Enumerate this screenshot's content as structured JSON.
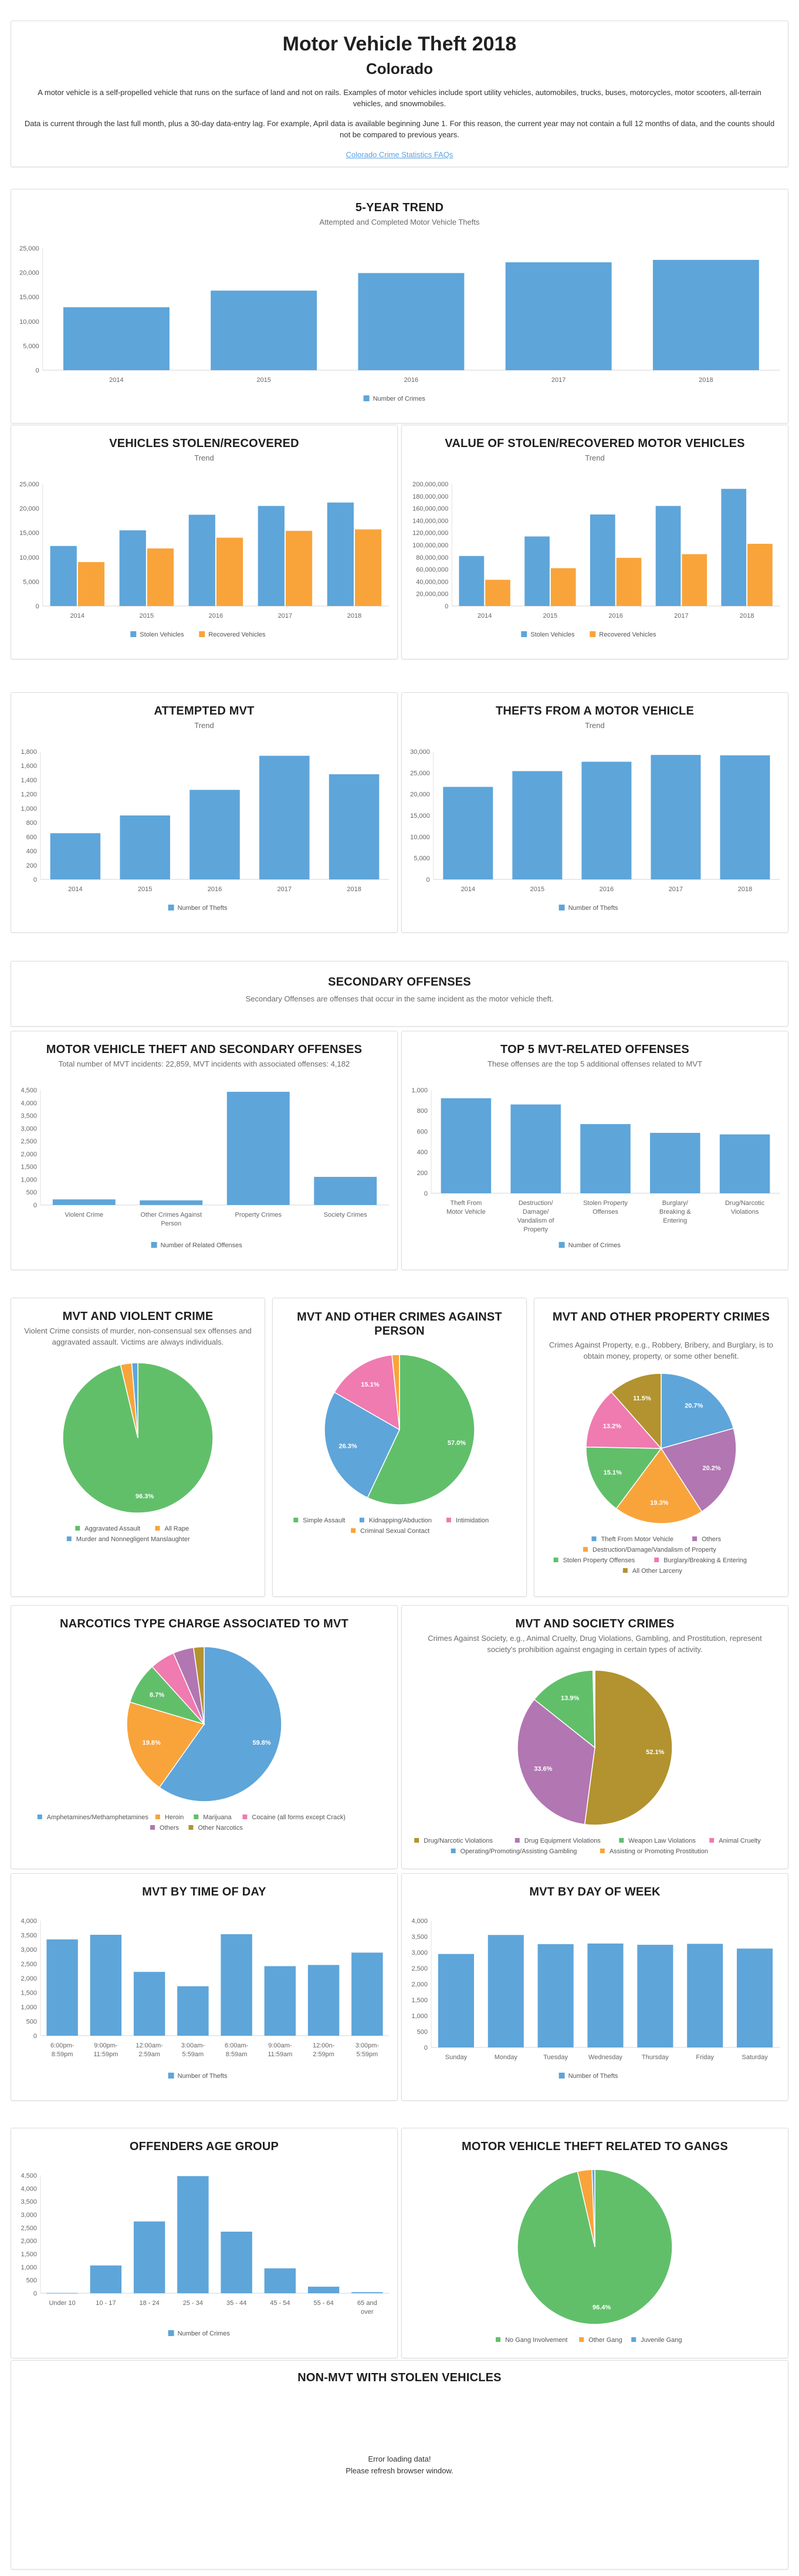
{
  "header": {
    "title": "Motor Vehicle Theft 2018",
    "state": "Colorado",
    "paragraph1": "A motor vehicle is a self-propelled vehicle that runs on the surface of land and not on rails. Examples of motor vehicles include sport utility vehicles, automobiles, trucks, buses, motorcycles, motor scooters, all-terrain vehicles, and snowmobiles.",
    "paragraph2": "Data is current through the last full month, plus a 30-day data-entry lag. For example, April data is available beginning June 1. For this reason, the current year may not contain a full 12 months of data, and the counts should not be compared to previous years.",
    "faq_link": "Colorado Crime Statistics FAQs"
  },
  "colors": {
    "blue": "#5ea5da",
    "orange": "#f9a43b",
    "green": "#61bf6a",
    "pink": "#ef7bb0",
    "purple": "#b276b2",
    "olive": "#b2932f",
    "link": "#5aa3e0"
  },
  "secondary": {
    "title": "SECONDARY OFFENSES",
    "subtitle": "Secondary Offenses are offenses that occur in the same incident as the motor vehicle theft."
  },
  "non_mvt": {
    "title": "NON-MVT WITH STOLEN VEHICLES",
    "error_line1": "Error loading data!",
    "error_line2": "Please refresh browser window."
  },
  "chart_data": [
    {
      "id": "five_year",
      "type": "bar",
      "title": "5-YEAR TREND",
      "subtitle": "Attempted and Completed Motor Vehicle Thefts",
      "categories": [
        "2014",
        "2015",
        "2016",
        "2017",
        "2018"
      ],
      "series": [
        {
          "name": "Number of Crimes",
          "color": "#5ea5da",
          "values": [
            12900,
            16300,
            19900,
            22100,
            22600
          ]
        }
      ],
      "yticks": [
        "0",
        "5,000",
        "10,000",
        "15,000",
        "20,000",
        "25,000"
      ],
      "ylim": [
        0,
        25000
      ],
      "legend": "bottom"
    },
    {
      "id": "stolen_recovered",
      "type": "bar",
      "title": "VEHICLES STOLEN/RECOVERED",
      "subtitle": "Trend",
      "categories": [
        "2014",
        "2015",
        "2016",
        "2017",
        "2018"
      ],
      "series": [
        {
          "name": "Stolen Vehicles",
          "color": "#5ea5da",
          "values": [
            12300,
            15500,
            18700,
            20500,
            21200
          ]
        },
        {
          "name": "Recovered Vehicles",
          "color": "#f9a43b",
          "values": [
            9000,
            11800,
            14000,
            15400,
            15700
          ]
        }
      ],
      "yticks": [
        "0",
        "5,000",
        "10,000",
        "15,000",
        "20,000",
        "25,000"
      ],
      "ylim": [
        0,
        25000
      ],
      "legend": "bottom"
    },
    {
      "id": "value",
      "type": "bar",
      "title": "VALUE OF STOLEN/RECOVERED MOTOR VEHICLES",
      "subtitle": "Trend",
      "categories": [
        "2014",
        "2015",
        "2016",
        "2017",
        "2018"
      ],
      "series": [
        {
          "name": "Stolen Vehicles",
          "color": "#5ea5da",
          "values": [
            82000000,
            114000000,
            150000000,
            164000000,
            192000000
          ]
        },
        {
          "name": "Recovered Vehicles",
          "color": "#f9a43b",
          "values": [
            43000000,
            62000000,
            79000000,
            85000000,
            102000000
          ]
        }
      ],
      "yticks": [
        "0",
        "20,000,000",
        "40,000,000",
        "60,000,000",
        "80,000,000",
        "100,000,000",
        "120,000,000",
        "140,000,000",
        "160,000,000",
        "180,000,000",
        "200,000,000"
      ],
      "ylim": [
        0,
        200000000
      ],
      "legend": "bottom"
    },
    {
      "id": "attempted",
      "type": "bar",
      "title": "ATTEMPTED MVT",
      "subtitle": "Trend",
      "categories": [
        "2014",
        "2015",
        "2016",
        "2017",
        "2018"
      ],
      "series": [
        {
          "name": "Number of Thefts",
          "color": "#5ea5da",
          "values": [
            650,
            900,
            1260,
            1740,
            1480
          ]
        }
      ],
      "yticks": [
        "0",
        "200",
        "400",
        "600",
        "800",
        "1,000",
        "1,200",
        "1,400",
        "1,600",
        "1,800"
      ],
      "ylim": [
        0,
        1800
      ],
      "legend": "bottom"
    },
    {
      "id": "thefts_from",
      "type": "bar",
      "title": "THEFTS FROM A MOTOR VEHICLE",
      "subtitle": "Trend",
      "categories": [
        "2014",
        "2015",
        "2016",
        "2017",
        "2018"
      ],
      "series": [
        {
          "name": "Number of Thefts",
          "color": "#5ea5da",
          "values": [
            21700,
            25400,
            27600,
            29200,
            29100
          ]
        }
      ],
      "yticks": [
        "0",
        "5,000",
        "10,000",
        "15,000",
        "20,000",
        "25,000",
        "30,000"
      ],
      "ylim": [
        0,
        30000
      ],
      "legend": "bottom"
    },
    {
      "id": "secondary_offenses",
      "type": "bar",
      "title": "MOTOR VEHICLE THEFT AND SECONDARY OFFENSES",
      "subtitle": "Total number of MVT incidents: 22,859, MVT incidents with associated offenses: 4,182",
      "categories": [
        "Violent Crime",
        "Other Crimes Against|Person",
        "Property Crimes",
        "Society Crimes"
      ],
      "series": [
        {
          "name": "Number of Related Offenses",
          "color": "#5ea5da",
          "values": [
            220,
            180,
            4430,
            1100
          ]
        }
      ],
      "yticks": [
        "0",
        "500",
        "1,000",
        "1,500",
        "2,000",
        "2,500",
        "3,000",
        "3,500",
        "4,000",
        "4,500"
      ],
      "ylim": [
        0,
        4500
      ],
      "legend": "bottom"
    },
    {
      "id": "top5",
      "type": "bar",
      "title": "TOP 5 MVT-RELATED OFFENSES",
      "subtitle": "These offenses are the top 5 additional offenses related to MVT",
      "categories": [
        "Theft From|Motor Vehicle",
        "Destruction/|Damage/|Vandalism of|Property",
        "Stolen Property|Offenses",
        "Burglary/|Breaking &|Entering",
        "Drug/Narcotic|Violations"
      ],
      "series": [
        {
          "name": "Number of Crimes",
          "color": "#5ea5da",
          "values": [
            920,
            860,
            670,
            585,
            570
          ]
        }
      ],
      "yticks": [
        "0",
        "200",
        "400",
        "600",
        "800",
        "1,000"
      ],
      "ylim": [
        0,
        1000
      ],
      "legend": "bottom"
    },
    {
      "id": "violent",
      "type": "pie",
      "title": "MVT AND VIOLENT CRIME",
      "subtitle": "Violent Crime consists of murder, non-consensual sex offenses and aggravated assault. Victims are always individuals.",
      "slices": [
        {
          "label": "Aggravated Assault",
          "value": 96.3,
          "color": "#61bf6a",
          "show": "96.3%"
        },
        {
          "label": "All Rape",
          "value": 2.4,
          "color": "#f9a43b",
          "show": ""
        },
        {
          "label": "Murder and Nonnegligent Manslaughter",
          "value": 1.3,
          "color": "#5ea5da",
          "show": ""
        }
      ],
      "legend_order": [
        0,
        1,
        2
      ],
      "start": "counterclockwise-from-top"
    },
    {
      "id": "person",
      "type": "pie",
      "title": "MVT AND OTHER CRIMES AGAINST PERSON",
      "subtitle": "",
      "slices": [
        {
          "label": "Simple Assault",
          "value": 57.0,
          "color": "#61bf6a",
          "show": "57.0%"
        },
        {
          "label": "Kidnapping/Abduction",
          "value": 26.3,
          "color": "#5ea5da",
          "show": "26.3%"
        },
        {
          "label": "Intimidation",
          "value": 15.1,
          "color": "#ef7bb0",
          "show": "15.1%"
        },
        {
          "label": "Criminal Sexual Contact",
          "value": 1.6,
          "color": "#f9a43b",
          "show": ""
        }
      ]
    },
    {
      "id": "property",
      "type": "pie",
      "title": "MVT AND OTHER PROPERTY CRIMES",
      "subtitle": "Crimes Against Property, e.g., Robbery, Bribery, and Burglary, is to obtain money, property, or some other benefit.",
      "slices": [
        {
          "label": "Theft From Motor Vehicle",
          "value": 20.7,
          "color": "#5ea5da",
          "show": "20.7%"
        },
        {
          "label": "Others",
          "value": 20.2,
          "color": "#b276b2",
          "show": "20.2%"
        },
        {
          "label": "Destruction/Damage/Vandalism of Property",
          "value": 19.3,
          "color": "#f9a43b",
          "show": "19.3%"
        },
        {
          "label": "Stolen Property Offenses",
          "value": 15.1,
          "color": "#61bf6a",
          "show": "15.1%"
        },
        {
          "label": "Burglary/Breaking & Entering",
          "value": 13.2,
          "color": "#ef7bb0",
          "show": "13.2%"
        },
        {
          "label": "All Other Larceny",
          "value": 11.5,
          "color": "#b2932f",
          "show": "11.5%"
        }
      ]
    },
    {
      "id": "narcotics",
      "type": "pie",
      "title": "NARCOTICS TYPE CHARGE ASSOCIATED TO MVT",
      "subtitle": "",
      "slices": [
        {
          "label": "Amphetamines/Methamphetamines",
          "value": 59.8,
          "color": "#5ea5da",
          "show": "59.8%"
        },
        {
          "label": "Heroin",
          "value": 19.8,
          "color": "#f9a43b",
          "show": "19.8%"
        },
        {
          "label": "Marijuana",
          "value": 8.7,
          "color": "#61bf6a",
          "show": "8.7%"
        },
        {
          "label": "Cocaine (all forms except Crack)",
          "value": 5.2,
          "color": "#ef7bb0",
          "show": ""
        },
        {
          "label": "Others",
          "value": 4.3,
          "color": "#b276b2",
          "show": ""
        },
        {
          "label": "Other Narcotics",
          "value": 2.2,
          "color": "#b2932f",
          "show": ""
        }
      ]
    },
    {
      "id": "society",
      "type": "pie",
      "title": "MVT AND SOCIETY CRIMES",
      "subtitle": "Crimes Against Society, e.g., Animal Cruelty, Drug Violations, Gambling, and Prostitution, represent society's prohibition against engaging in certain types of activity.",
      "slices": [
        {
          "label": "Drug/Narcotic Violations",
          "value": 52.1,
          "color": "#b2932f",
          "show": "52.1%"
        },
        {
          "label": "Drug Equipment Violations",
          "value": 33.6,
          "color": "#b276b2",
          "show": "33.6%"
        },
        {
          "label": "Weapon Law Violations",
          "value": 13.9,
          "color": "#61bf6a",
          "show": "13.9%"
        },
        {
          "label": "Animal Cruelty",
          "value": 0.2,
          "color": "#ef7bb0",
          "show": ""
        },
        {
          "label": "Operating/Promoting/Assisting Gambling",
          "value": 0.1,
          "color": "#5ea5da",
          "show": ""
        },
        {
          "label": "Assisting or Promoting Prostitution",
          "value": 0.1,
          "color": "#f9a43b",
          "show": ""
        }
      ]
    },
    {
      "id": "time_of_day",
      "type": "bar",
      "title": "MVT BY TIME OF DAY",
      "subtitle": "",
      "categories": [
        "6:00pm-|8:59pm",
        "9:00pm-|11:59pm",
        "12:00am-|2:59am",
        "3:00am-|5:59am",
        "6:00am-|8:59am",
        "9:00am-|11:59am",
        "12:00n-|2:59pm",
        "3:00pm-|5:59pm"
      ],
      "series": [
        {
          "name": "Number of Thefts",
          "color": "#5ea5da",
          "values": [
            3350,
            3510,
            2220,
            1720,
            3530,
            2420,
            2460,
            2890
          ]
        }
      ],
      "yticks": [
        "0",
        "500",
        "1,000",
        "1,500",
        "2,000",
        "2,500",
        "3,000",
        "3,500",
        "4,000"
      ],
      "ylim": [
        0,
        4000
      ],
      "legend": "bottom"
    },
    {
      "id": "day_of_week",
      "type": "bar",
      "title": "MVT BY DAY OF WEEK",
      "subtitle": "",
      "categories": [
        "Sunday",
        "Monday",
        "Tuesday",
        "Wednesday",
        "Thursday",
        "Friday",
        "Saturday"
      ],
      "series": [
        {
          "name": "Number of Thefts",
          "color": "#5ea5da",
          "values": [
            2950,
            3550,
            3260,
            3280,
            3240,
            3270,
            3120
          ]
        }
      ],
      "yticks": [
        "0",
        "500",
        "1,000",
        "1,500",
        "2,000",
        "2,500",
        "3,000",
        "3,500",
        "4,000"
      ],
      "ylim": [
        0,
        4000
      ],
      "legend": "bottom"
    },
    {
      "id": "age",
      "type": "bar",
      "title": "OFFENDERS AGE GROUP",
      "subtitle": "",
      "categories": [
        "Under 10",
        "10 - 17",
        "18 - 24",
        "25 - 34",
        "35 - 44",
        "45 - 54",
        "55 - 64",
        "65 and|over"
      ],
      "series": [
        {
          "name": "Number of Crimes",
          "color": "#5ea5da",
          "values": [
            10,
            1060,
            2740,
            4470,
            2350,
            950,
            250,
            40
          ]
        }
      ],
      "yticks": [
        "0",
        "500",
        "1,000",
        "1,500",
        "2,000",
        "2,500",
        "3,000",
        "3,500",
        "4,000",
        "4,500"
      ],
      "ylim": [
        0,
        4500
      ],
      "legend": "bottom"
    },
    {
      "id": "gangs",
      "type": "pie",
      "title": "MOTOR VEHICLE THEFT RELATED TO GANGS",
      "subtitle": "",
      "slices": [
        {
          "label": "No Gang Involvement",
          "value": 96.4,
          "color": "#61bf6a",
          "show": "96.4%"
        },
        {
          "label": "Other Gang",
          "value": 3.0,
          "color": "#f9a43b",
          "show": ""
        },
        {
          "label": "Juvenile Gang",
          "value": 0.6,
          "color": "#5ea5da",
          "show": ""
        }
      ]
    }
  ]
}
